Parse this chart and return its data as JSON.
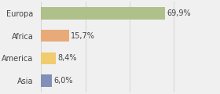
{
  "categories": [
    "Europa",
    "Africa",
    "America",
    "Asia"
  ],
  "values": [
    69.9,
    15.7,
    8.4,
    6.0
  ],
  "labels": [
    "69,9%",
    "15,7%",
    "8,4%",
    "6,0%"
  ],
  "bar_colors": [
    "#afc08a",
    "#e8aa78",
    "#f0cc6e",
    "#8090b8"
  ],
  "background_color": "#f0f0f0",
  "xlim": [
    0,
    100
  ],
  "bar_height": 0.55,
  "label_fontsize": 7,
  "tick_fontsize": 7,
  "grid_color": "#d0d0d0",
  "grid_ticks": [
    0,
    25,
    50,
    75,
    100
  ]
}
